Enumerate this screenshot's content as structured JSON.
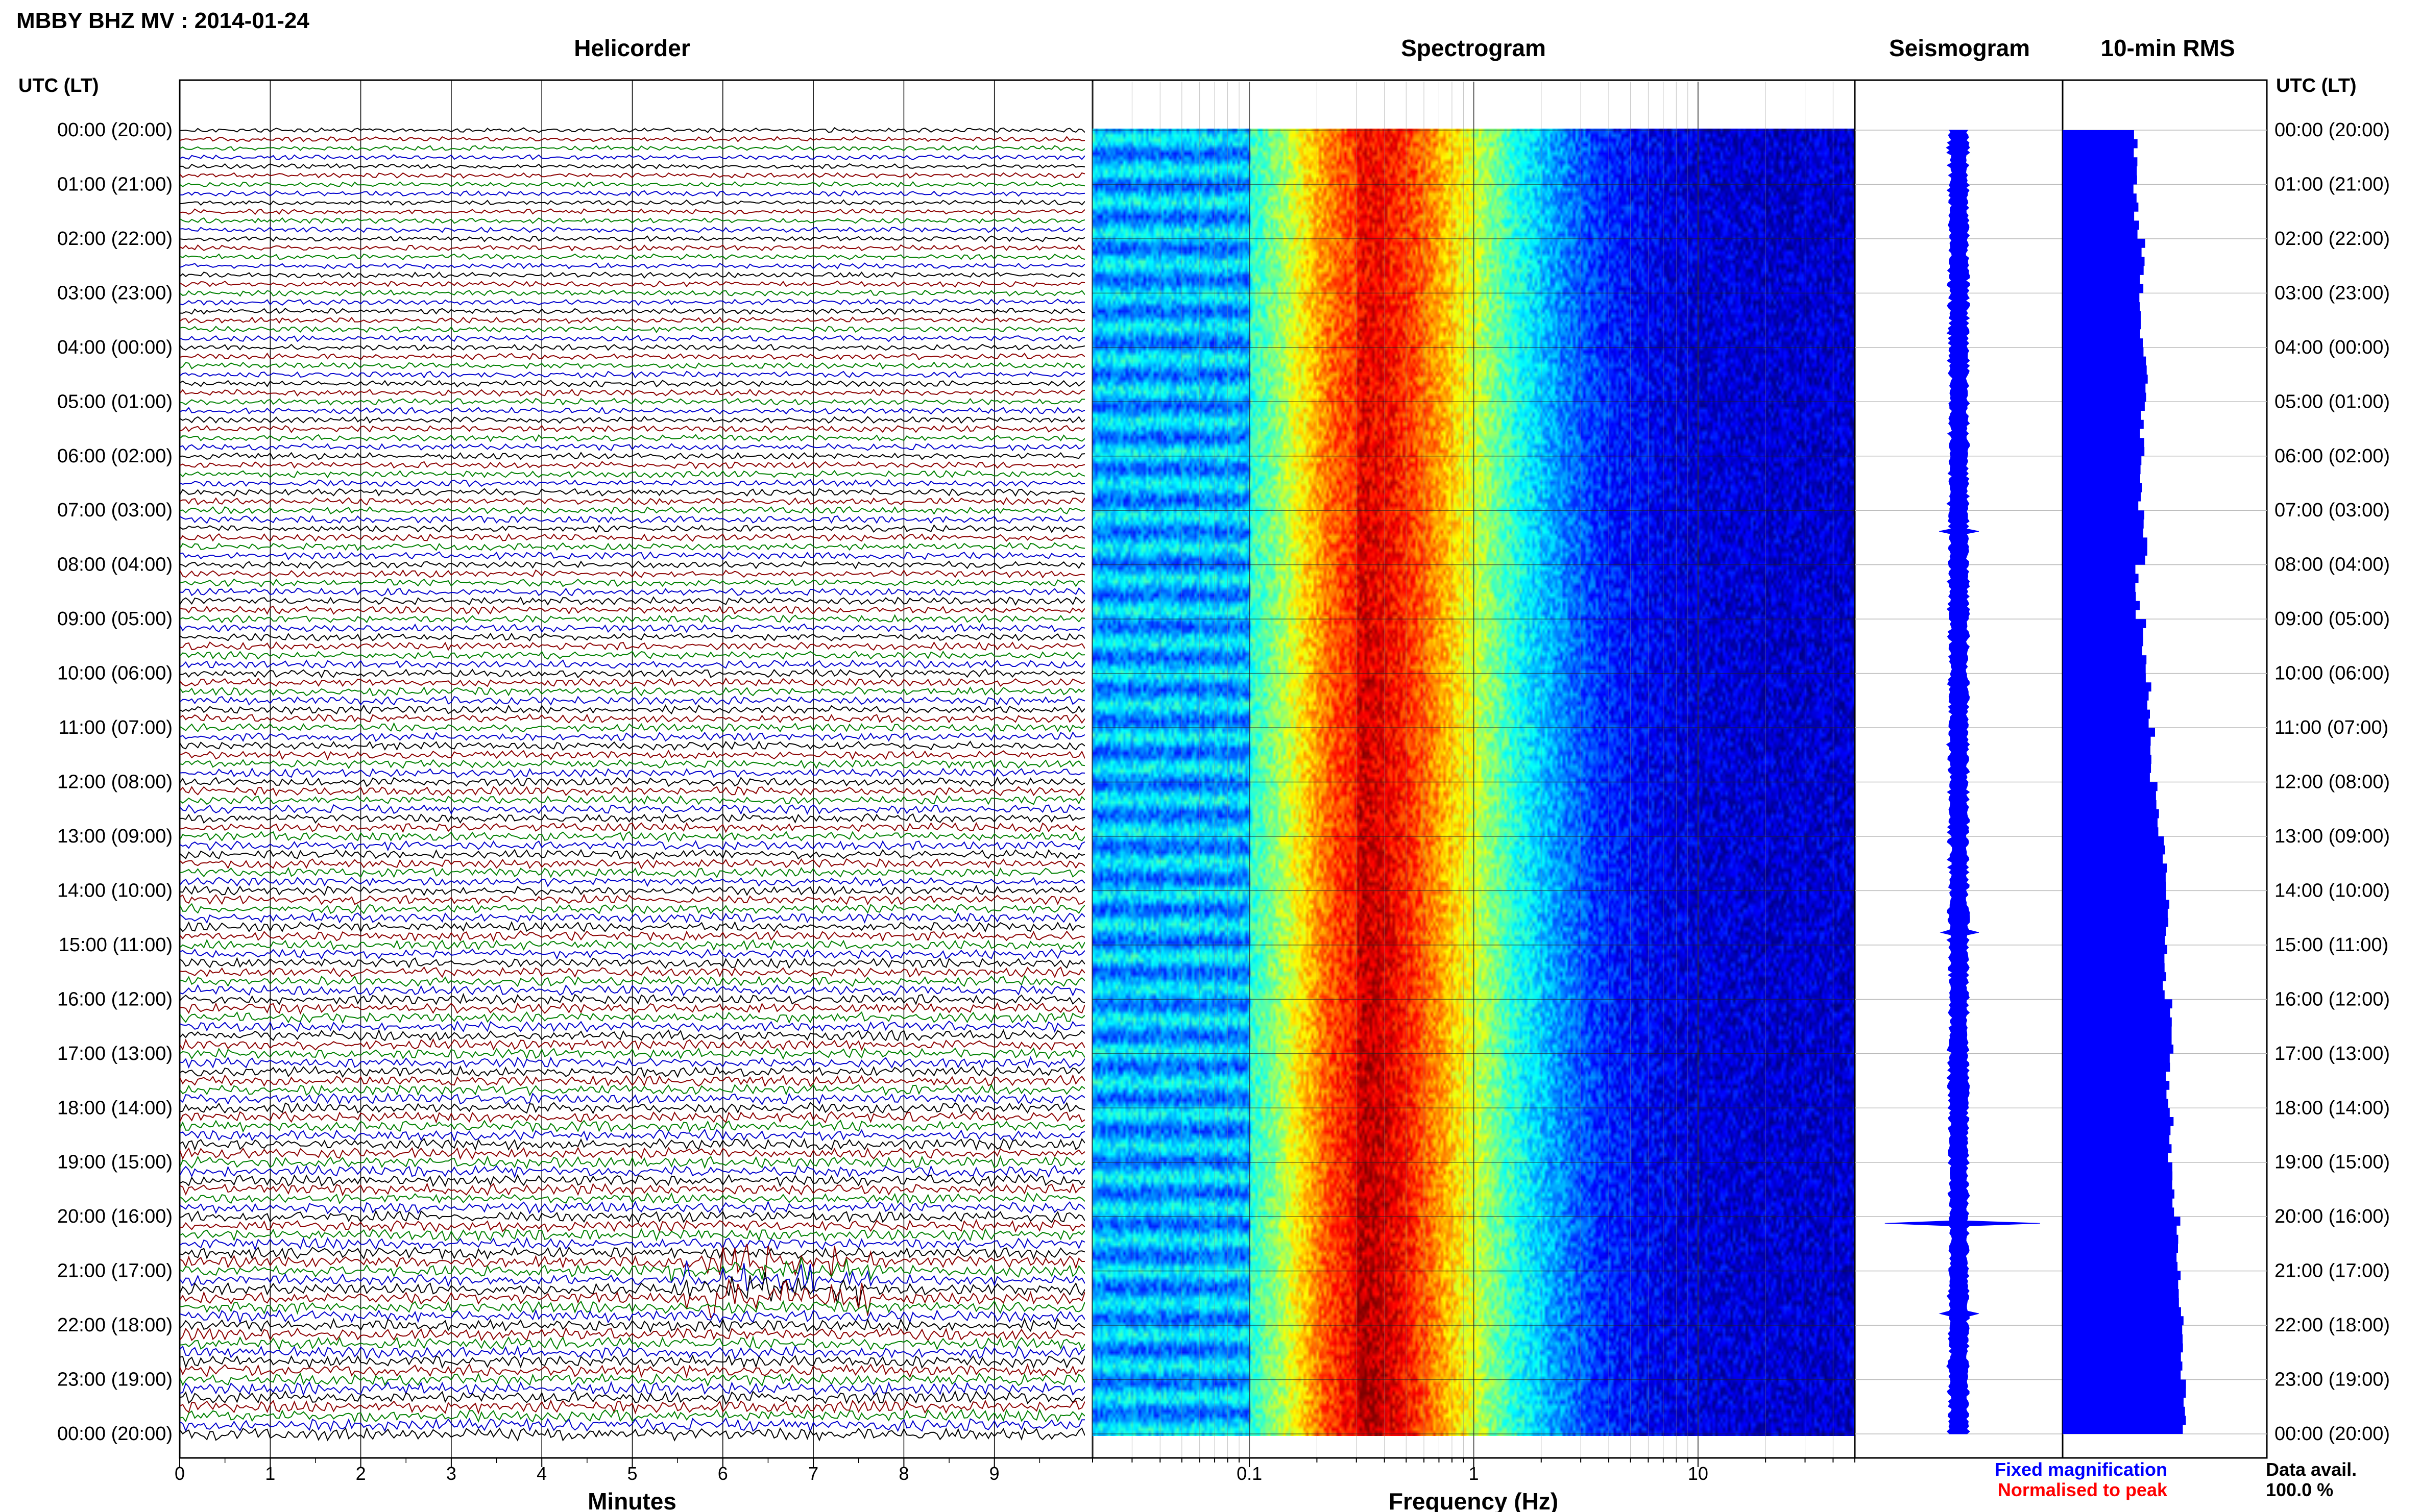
{
  "header": {
    "title": "MBBY BHZ MV : 2014-01-24",
    "utc_label": "UTC (LT)"
  },
  "panels": {
    "helicorder": "Helicorder",
    "spectrogram": "Spectrogram",
    "seismogram": "Seismogram",
    "rms": "10-min RMS"
  },
  "axes": {
    "minutes_label": "Minutes",
    "frequency_label": "Frequency (Hz)"
  },
  "legend": {
    "fixed": "Fixed magnification",
    "normalised": "Normalised to peak",
    "fixed_color": "#0000ff",
    "normalised_color": "#ff0000"
  },
  "data_avail": {
    "label": "Data avail.",
    "value": "100.0 %"
  },
  "colors": {
    "trace_cycle": [
      "#000000",
      "#8b0000",
      "#008000",
      "#0000cd"
    ],
    "rms_bar": "#0000ff",
    "spectrogram_low": "#00008b",
    "spectrogram_high": "#ff0000"
  },
  "chart_data": [
    {
      "type": "line",
      "title": "Helicorder",
      "xlabel": "Minutes",
      "x_ticks": [
        0,
        1,
        2,
        3,
        4,
        5,
        6,
        7,
        8,
        9
      ],
      "xlim": [
        0,
        10
      ],
      "line_interval_minutes": 10,
      "lines_per_hour": 6,
      "y_ticks": [
        "00:00 (20:00)",
        "01:00 (21:00)",
        "02:00 (22:00)",
        "03:00 (23:00)",
        "04:00 (00:00)",
        "05:00 (01:00)",
        "06:00 (02:00)",
        "07:00 (03:00)",
        "08:00 (04:00)",
        "09:00 (05:00)",
        "10:00 (06:00)",
        "11:00 (07:00)",
        "12:00 (08:00)",
        "13:00 (09:00)",
        "14:00 (10:00)",
        "15:00 (11:00)",
        "16:00 (12:00)",
        "17:00 (13:00)",
        "18:00 (14:00)",
        "19:00 (15:00)",
        "20:00 (16:00)",
        "21:00 (17:00)",
        "22:00 (18:00)",
        "23:00 (19:00)",
        "00:00 (20:00)"
      ]
    },
    {
      "type": "heatmap",
      "title": "Spectrogram",
      "xlabel": "Frequency (Hz)",
      "x_scale": "log",
      "xlim": [
        0.02,
        50
      ],
      "x_ticks": [
        "0.1",
        "1",
        "10"
      ],
      "peak_frequency_hz": 0.3
    },
    {
      "type": "line",
      "title": "Seismogram",
      "color": "#0000ff"
    },
    {
      "type": "bar",
      "title": "10-min RMS",
      "color": "#0000ff",
      "orientation": "horizontal",
      "hourly_relative_rms": [
        0.36,
        0.36,
        0.39,
        0.39,
        0.41,
        0.39,
        0.38,
        0.4,
        0.37,
        0.4,
        0.42,
        0.44,
        0.47,
        0.5,
        0.51,
        0.5,
        0.54,
        0.52,
        0.53,
        0.55,
        0.57,
        0.58,
        0.59,
        0.6
      ]
    }
  ]
}
